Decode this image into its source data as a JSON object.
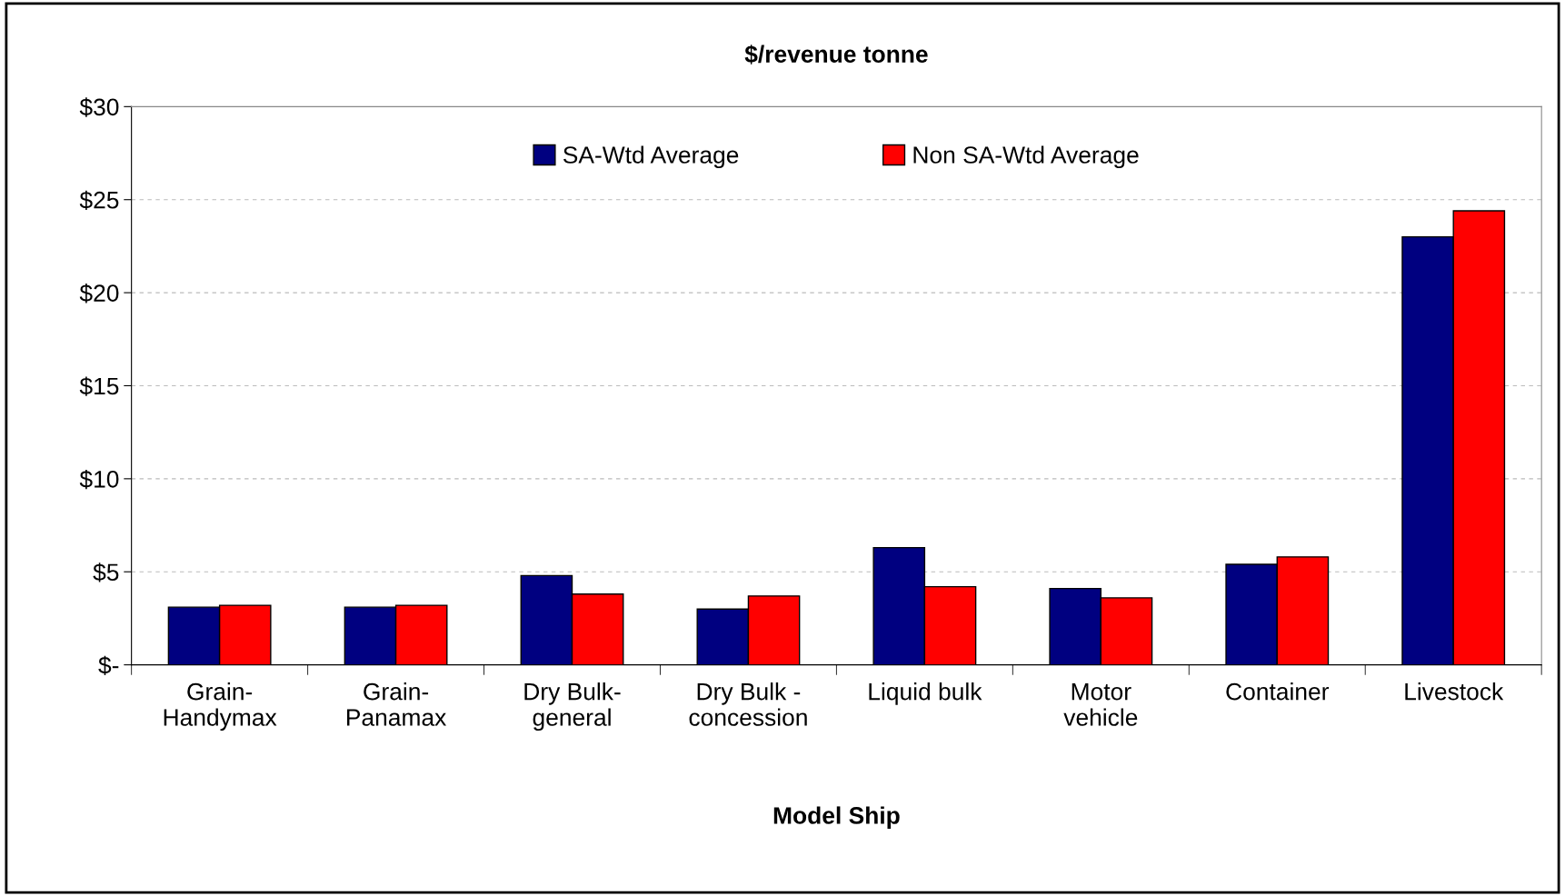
{
  "chart_data": {
    "type": "bar",
    "title": "$/revenue tonne",
    "xlabel": "Model Ship",
    "categories": [
      "Grain-\nHandymax",
      "Grain-\nPanamax",
      "Dry Bulk-\ngeneral",
      "Dry Bulk -\nconcession",
      "Liquid bulk",
      "Motor\nvehicle",
      "Container",
      "Livestock"
    ],
    "series": [
      {
        "name": "SA-Wtd Average",
        "color": "#000080",
        "values": [
          3.1,
          3.1,
          4.8,
          3.0,
          6.3,
          4.1,
          5.4,
          23.0
        ]
      },
      {
        "name": "Non SA-Wtd Average",
        "color": "#ff0000",
        "values": [
          3.2,
          3.2,
          3.8,
          3.7,
          4.2,
          3.6,
          5.8,
          24.4
        ]
      }
    ],
    "ylim": [
      0,
      30
    ],
    "yticks": [
      {
        "value": 0,
        "label": "$-"
      },
      {
        "value": 5,
        "label": "$5"
      },
      {
        "value": 10,
        "label": "$10"
      },
      {
        "value": 15,
        "label": "$15"
      },
      {
        "value": 20,
        "label": "$20"
      },
      {
        "value": 25,
        "label": "$25"
      },
      {
        "value": 30,
        "label": "$30"
      }
    ],
    "grid": "y",
    "legend": "top"
  }
}
